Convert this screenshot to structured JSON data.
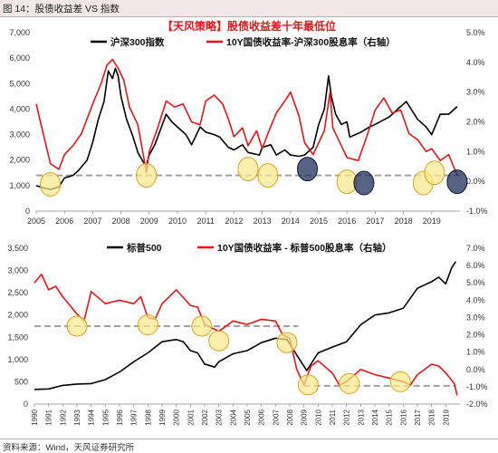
{
  "figure_label": "图 14：股债收益差 VS 指数",
  "source": "资料来源：Wind，天风证券研究所",
  "colors": {
    "index": "#000000",
    "spread": "#e8141b",
    "ref": "#a0a0a0",
    "yellow": "#ffe88a",
    "yellow_edge": "#e0a020",
    "navy": "#1f2f5a"
  },
  "chart_data": [
    {
      "type": "line",
      "title": "【天风策略】股债收益差十年最低位",
      "series": [
        {
          "name": "沪深300指数",
          "axis": "left",
          "x": [
            2005.0,
            2005.3,
            2005.5,
            2005.8,
            2006.0,
            2006.3,
            2006.5,
            2006.8,
            2007.0,
            2007.2,
            2007.4,
            2007.55,
            2007.7,
            2007.8,
            2007.9,
            2008.0,
            2008.2,
            2008.4,
            2008.6,
            2008.8,
            2008.9,
            2009.0,
            2009.2,
            2009.5,
            2009.6,
            2009.8,
            2010.0,
            2010.3,
            2010.5,
            2010.8,
            2011.0,
            2011.3,
            2011.5,
            2011.8,
            2012.0,
            2012.3,
            2012.5,
            2012.9,
            2013.0,
            2013.3,
            2013.5,
            2013.8,
            2014.0,
            2014.3,
            2014.5,
            2014.8,
            2015.0,
            2015.2,
            2015.35,
            2015.45,
            2015.6,
            2015.8,
            2016.0,
            2016.1,
            2016.5,
            2016.8,
            2017.0,
            2017.5,
            2017.8,
            2018.0,
            2018.1,
            2018.5,
            2018.8,
            2019.0,
            2019.3,
            2019.6,
            2019.9
          ],
          "y": [
            1000,
            900,
            850,
            950,
            1300,
            1400,
            1600,
            2000,
            2700,
            3600,
            4300,
            5500,
            5200,
            5600,
            5300,
            4500,
            3600,
            3000,
            2300,
            1900,
            1800,
            2200,
            2600,
            3500,
            3800,
            3500,
            3300,
            3000,
            2600,
            3300,
            3100,
            3000,
            2900,
            2500,
            2400,
            2600,
            2300,
            2200,
            2500,
            2600,
            2200,
            2400,
            2200,
            2150,
            2200,
            2500,
            3400,
            4000,
            5300,
            4500,
            3800,
            3400,
            3500,
            2900,
            3100,
            3300,
            3400,
            3700,
            4000,
            4200,
            4300,
            3600,
            3300,
            3000,
            3800,
            3800,
            4100
          ]
        },
        {
          "name": "10Y国债收益率-沪深300股息率（右轴）",
          "axis": "right",
          "x": [
            2005.0,
            2005.2,
            2005.5,
            2005.8,
            2006.0,
            2006.3,
            2006.6,
            2007.0,
            2007.3,
            2007.5,
            2007.7,
            2007.9,
            2008.1,
            2008.3,
            2008.6,
            2008.9,
            2009.0,
            2009.3,
            2009.6,
            2009.9,
            2010.2,
            2010.5,
            2010.8,
            2011.0,
            2011.3,
            2011.6,
            2011.8,
            2012.0,
            2012.3,
            2012.5,
            2012.8,
            2013.0,
            2013.2,
            2013.5,
            2013.8,
            2014.0,
            2014.3,
            2014.5,
            2014.8,
            2015.0,
            2015.2,
            2015.4,
            2015.5,
            2015.7,
            2016.0,
            2016.4,
            2016.7,
            2017.0,
            2017.3,
            2017.6,
            2017.9,
            2018.2,
            2018.5,
            2018.8,
            2019.0,
            2019.3,
            2019.6,
            2019.9
          ],
          "y": [
            2.6,
            1.8,
            0.6,
            0.4,
            0.9,
            1.2,
            1.6,
            2.6,
            3.3,
            3.9,
            4.1,
            3.8,
            3.4,
            2.5,
            1.9,
            0.3,
            1.0,
            1.8,
            2.7,
            2.5,
            2.6,
            2.0,
            1.9,
            2.7,
            2.9,
            2.6,
            2.1,
            1.5,
            1.8,
            1.2,
            1.7,
            1.1,
            1.6,
            2.3,
            2.7,
            3.0,
            2.2,
            1.3,
            0.9,
            1.3,
            1.7,
            3.0,
            1.8,
            1.4,
            0.8,
            0.7,
            1.5,
            2.4,
            2.8,
            2.3,
            2.4,
            1.6,
            1.4,
            1.0,
            1.1,
            0.7,
            0.9,
            0.2
          ]
        }
      ],
      "y_left": {
        "ylim": [
          0,
          7000
        ],
        "ticks": [
          "0",
          "1,000",
          "2,000",
          "3,000",
          "4,000",
          "5,000",
          "6,000",
          "7,000"
        ]
      },
      "y_right": {
        "ylim": [
          -1.0,
          5.0
        ],
        "ticks": [
          "-1.0%",
          "0.0%",
          "1.0%",
          "2.0%",
          "3.0%",
          "4.0%",
          "5.0%"
        ]
      },
      "x_ticks": [
        "2005",
        "2006",
        "2007",
        "2008",
        "2009",
        "2010",
        "2011",
        "2012",
        "2013",
        "2014",
        "2015",
        "2016",
        "2017",
        "2018",
        "2019"
      ],
      "reference_line": 1400,
      "highlights": [
        {
          "x": 2005.5,
          "y": 1050,
          "color": "yellow"
        },
        {
          "x": 2008.9,
          "y": 1400,
          "color": "yellow"
        },
        {
          "x": 2012.5,
          "y": 1650,
          "color": "yellow"
        },
        {
          "x": 2013.2,
          "y": 1400,
          "color": "yellow"
        },
        {
          "x": 2014.6,
          "y": 1650,
          "color": "navy"
        },
        {
          "x": 2016.0,
          "y": 1150,
          "color": "yellow"
        },
        {
          "x": 2016.6,
          "y": 1100,
          "color": "navy"
        },
        {
          "x": 2018.7,
          "y": 1100,
          "color": "yellow"
        },
        {
          "x": 2019.1,
          "y": 1500,
          "color": "yellow"
        },
        {
          "x": 2019.9,
          "y": 1150,
          "color": "navy"
        }
      ]
    },
    {
      "type": "line",
      "series": [
        {
          "name": "标普500",
          "axis": "left",
          "x": [
            1990,
            1991,
            1992,
            1993,
            1994,
            1995,
            1996,
            1997,
            1998,
            1999,
            2000,
            2000.5,
            2001,
            2001.5,
            2002,
            2002.7,
            2003,
            2004,
            2005,
            2006,
            2007,
            2007.8,
            2008.5,
            2009.2,
            2010,
            2011,
            2012,
            2013,
            2014,
            2015,
            2016,
            2017,
            2018,
            2018.5,
            2019,
            2019.4,
            2019.7
          ],
          "y": [
            330,
            340,
            420,
            450,
            460,
            550,
            720,
            950,
            1150,
            1400,
            1450,
            1400,
            1200,
            1150,
            900,
            830,
            950,
            1130,
            1200,
            1380,
            1480,
            1450,
            1100,
            750,
            1150,
            1280,
            1400,
            1780,
            2000,
            2050,
            2150,
            2600,
            2750,
            2850,
            2700,
            3050,
            3200
          ]
        },
        {
          "name": "10Y国债收益率 - 标普500股息率（右轴）",
          "axis": "right",
          "x": [
            1990,
            1990.5,
            1991,
            1991.5,
            1992,
            1993,
            1993.5,
            1994,
            1995,
            1996,
            1997,
            1997.5,
            1998,
            1998.5,
            1999,
            2000,
            2001,
            2001.5,
            2002,
            2003,
            2004,
            2005,
            2006,
            2007,
            2007.5,
            2008,
            2008.5,
            2009,
            2009.5,
            2010,
            2011,
            2011.5,
            2012,
            2013,
            2014,
            2015,
            2016,
            2016.5,
            2017,
            2018,
            2018.5,
            2019,
            2019.6,
            2019.8
          ],
          "y": [
            5.0,
            5.5,
            4.6,
            4.8,
            4.2,
            3.2,
            2.8,
            4.5,
            3.8,
            4.0,
            3.8,
            4.2,
            3.0,
            2.9,
            3.8,
            4.6,
            3.7,
            3.6,
            2.6,
            2.2,
            2.8,
            2.6,
            2.9,
            2.8,
            2.0,
            1.8,
            0.0,
            -0.9,
            0.2,
            0.5,
            -0.2,
            -0.9,
            -0.7,
            0.0,
            -0.3,
            -0.5,
            -0.7,
            -0.9,
            -0.3,
            0.3,
            0.2,
            -0.2,
            -0.8,
            -1.5
          ]
        }
      ],
      "y_left": {
        "ylim": [
          0,
          3500
        ],
        "ticks": [
          "0",
          "500",
          "1,000",
          "1,500",
          "2,000",
          "2,500",
          "3,000",
          "3,500"
        ]
      },
      "y_right": {
        "ylim": [
          -2.0,
          7.0
        ],
        "ticks": [
          "-2.0%",
          "-1.0%",
          "0.0%",
          "1.0%",
          "2.0%",
          "3.0%",
          "4.0%",
          "5.0%",
          "6.0%",
          "7.0%"
        ]
      },
      "x_ticks": [
        "1990",
        "1991",
        "1992",
        "1993",
        "1994",
        "1995",
        "1996",
        "1997",
        "1998",
        "1999",
        "2000",
        "2001",
        "2002",
        "2003",
        "2004",
        "2005",
        "2006",
        "2007",
        "2008",
        "2009",
        "2010",
        "2011",
        "2012",
        "2013",
        "2014",
        "2015",
        "2016",
        "2017",
        "2018",
        "2019"
      ],
      "reference_lines": [
        {
          "value": 1750,
          "x_from": 1990,
          "x_to": 2008.6
        },
        {
          "value": 410,
          "x_from": 2009,
          "x_to": 2019.7
        }
      ],
      "highlights": [
        {
          "x": 1993.0,
          "y": 1750,
          "color": "yellow"
        },
        {
          "x": 1998.0,
          "y": 1780,
          "color": "yellow"
        },
        {
          "x": 2001.8,
          "y": 1750,
          "color": "yellow"
        },
        {
          "x": 2003.0,
          "y": 1420,
          "color": "yellow"
        },
        {
          "x": 2007.8,
          "y": 1380,
          "color": "yellow"
        },
        {
          "x": 2009.3,
          "y": 430,
          "color": "yellow"
        },
        {
          "x": 2012.2,
          "y": 460,
          "color": "yellow"
        },
        {
          "x": 2015.8,
          "y": 500,
          "color": "yellow"
        }
      ]
    }
  ]
}
